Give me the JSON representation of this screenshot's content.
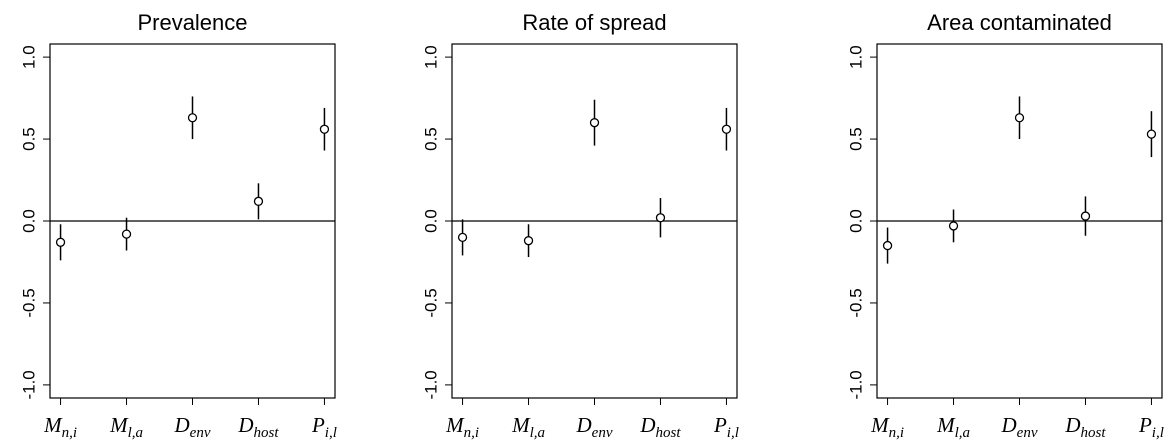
{
  "chart_data": [
    {
      "type": "errorbar",
      "title": "Prevalence",
      "categories": [
        {
          "text": "M",
          "sub": "n,i"
        },
        {
          "text": "M",
          "sub": "l,a"
        },
        {
          "text": "D",
          "sub": "env"
        },
        {
          "text": "D",
          "sub": "host"
        },
        {
          "text": "P",
          "sub": "i,l"
        }
      ],
      "values": [
        -0.13,
        -0.08,
        0.63,
        0.12,
        0.56
      ],
      "errors": [
        0.11,
        0.1,
        0.13,
        0.11,
        0.13
      ],
      "ylim": [
        -1.08,
        1.08
      ],
      "yticks": [
        {
          "value": -1,
          "label": "-1.0"
        },
        {
          "value": -0.5,
          "label": "-0.5"
        },
        {
          "value": 0,
          "label": "0.0"
        },
        {
          "value": 0.5,
          "label": "0.5"
        },
        {
          "value": 1,
          "label": "1.0"
        }
      ],
      "hline": 0,
      "color": "#000000"
    },
    {
      "type": "errorbar",
      "title": "Rate of spread",
      "categories": [
        {
          "text": "M",
          "sub": "n,i"
        },
        {
          "text": "M",
          "sub": "l,a"
        },
        {
          "text": "D",
          "sub": "env"
        },
        {
          "text": "D",
          "sub": "host"
        },
        {
          "text": "P",
          "sub": "i,l"
        }
      ],
      "values": [
        -0.1,
        -0.12,
        0.6,
        0.02,
        0.56
      ],
      "errors": [
        0.11,
        0.1,
        0.14,
        0.12,
        0.13
      ],
      "ylim": [
        -1.08,
        1.08
      ],
      "yticks": [
        {
          "value": -1,
          "label": "-1.0"
        },
        {
          "value": -0.5,
          "label": "-0.5"
        },
        {
          "value": 0,
          "label": "0.0"
        },
        {
          "value": 0.5,
          "label": "0.5"
        },
        {
          "value": 1,
          "label": "1.0"
        }
      ],
      "hline": 0,
      "color": "#000000"
    },
    {
      "type": "errorbar",
      "title": "Area contaminated",
      "categories": [
        {
          "text": "M",
          "sub": "n,i"
        },
        {
          "text": "M",
          "sub": "l,a"
        },
        {
          "text": "D",
          "sub": "env"
        },
        {
          "text": "D",
          "sub": "host"
        },
        {
          "text": "P",
          "sub": "i,l"
        }
      ],
      "values": [
        -0.15,
        -0.03,
        0.63,
        0.03,
        0.53
      ],
      "errors": [
        0.11,
        0.1,
        0.13,
        0.12,
        0.14
      ],
      "ylim": [
        -1.08,
        1.08
      ],
      "yticks": [
        {
          "value": -1,
          "label": "-1.0"
        },
        {
          "value": -0.5,
          "label": "-0.5"
        },
        {
          "value": 0,
          "label": "0.0"
        },
        {
          "value": 0.5,
          "label": "0.5"
        },
        {
          "value": 1,
          "label": "1.0"
        }
      ],
      "hline": 0,
      "color": "#000000"
    }
  ]
}
